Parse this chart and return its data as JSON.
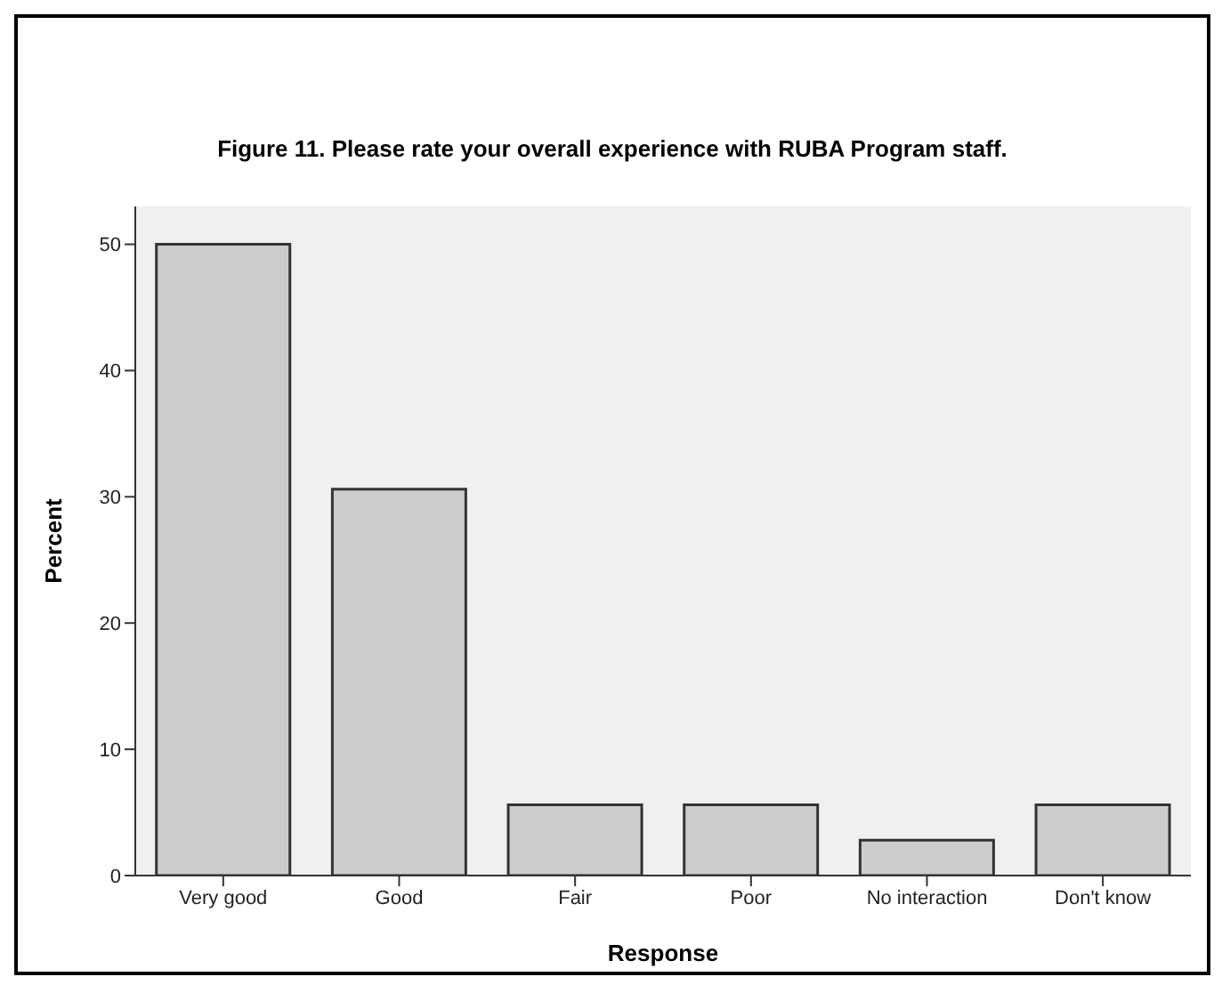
{
  "chart_data": {
    "type": "bar",
    "title": "Figure 11.  Please rate your overall experience with RUBA Program staff.",
    "xlabel": "Response",
    "ylabel": "Percent",
    "categories": [
      "Very good",
      "Good",
      "Fair",
      "Poor",
      "No interaction",
      "Don't know"
    ],
    "values": [
      50,
      30.6,
      5.6,
      5.6,
      2.8,
      5.6
    ],
    "color": "#cccccc",
    "ylim": [
      0,
      53
    ],
    "yticks": [
      0,
      10,
      20,
      30,
      40,
      50
    ],
    "grid": false
  }
}
